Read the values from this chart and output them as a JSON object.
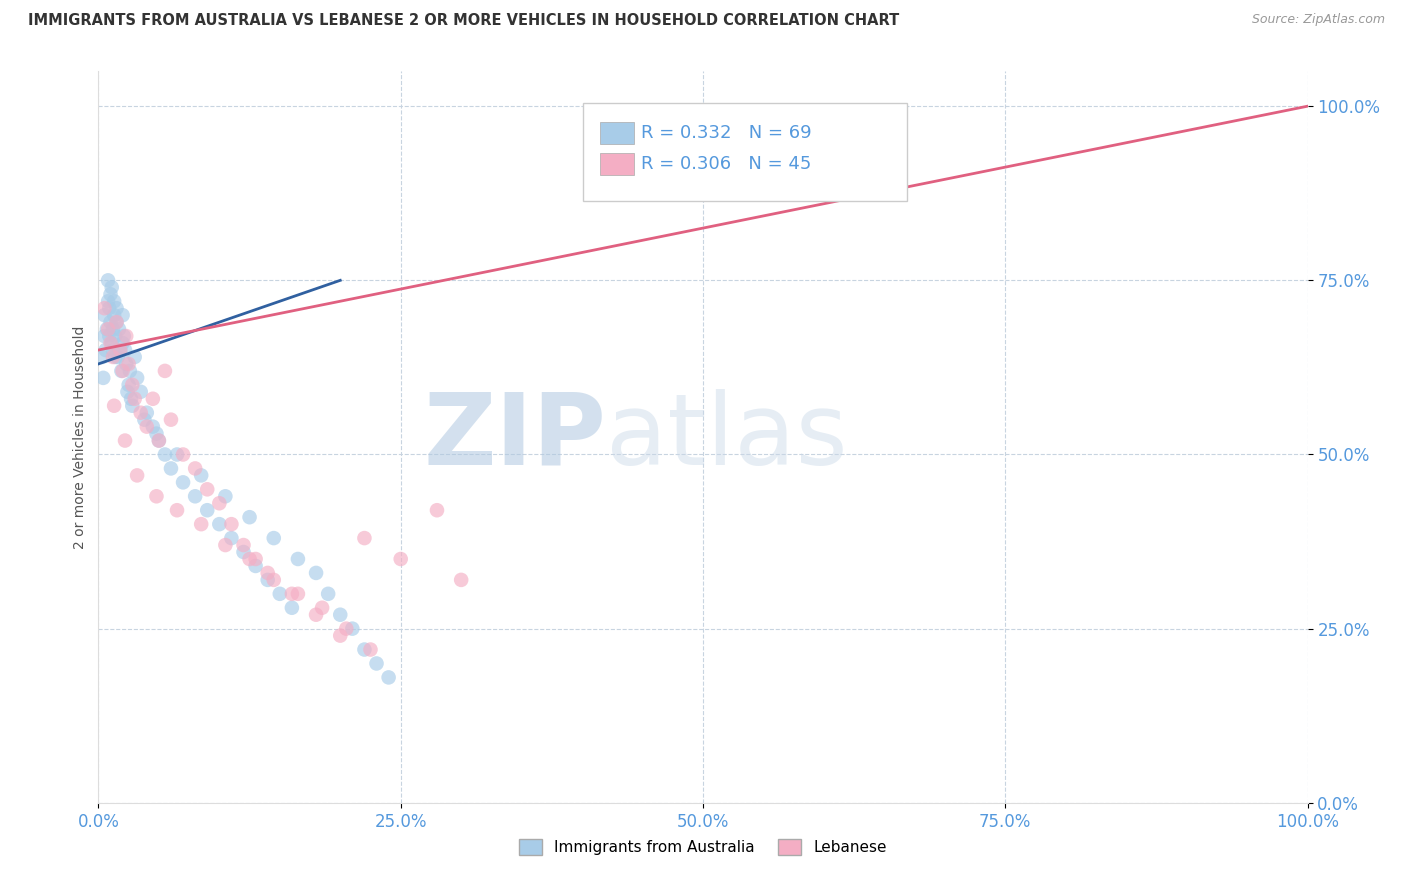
{
  "title": "IMMIGRANTS FROM AUSTRALIA VS LEBANESE 2 OR MORE VEHICLES IN HOUSEHOLD CORRELATION CHART",
  "source": "Source: ZipAtlas.com",
  "ylabel": "2 or more Vehicles in Household",
  "legend_label1": "Immigrants from Australia",
  "legend_label2": "Lebanese",
  "R1": 0.332,
  "N1": 69,
  "R2": 0.306,
  "N2": 45,
  "color1": "#a8cce8",
  "color2": "#f4aec4",
  "trend1_color": "#3060a0",
  "trend2_color": "#e06080",
  "watermark_zip": "ZIP",
  "watermark_atlas": "atlas",
  "background": "#ffffff",
  "ax_bg": "#ffffff",
  "title_color": "#333333",
  "axis_label_color": "#5599dd",
  "tick_color": "#5599dd",
  "figsize": [
    14.06,
    8.92
  ],
  "dpi": 100,
  "blue_x": [
    0.3,
    0.5,
    0.5,
    0.7,
    0.8,
    0.8,
    0.9,
    1.0,
    1.0,
    1.1,
    1.1,
    1.2,
    1.2,
    1.3,
    1.3,
    1.4,
    1.5,
    1.5,
    1.6,
    1.7,
    1.8,
    2.0,
    2.0,
    2.1,
    2.2,
    2.3,
    2.5,
    2.6,
    2.7,
    3.0,
    3.2,
    3.5,
    4.0,
    4.5,
    5.0,
    5.5,
    6.0,
    7.0,
    8.0,
    9.0,
    10.0,
    11.0,
    12.0,
    13.0,
    14.0,
    15.0,
    16.0,
    0.4,
    0.6,
    0.9,
    1.4,
    1.9,
    2.4,
    2.8,
    3.8,
    4.8,
    6.5,
    8.5,
    10.5,
    12.5,
    14.5,
    16.5,
    18.0,
    19.0,
    20.0,
    21.0,
    22.0,
    23.0,
    24.0
  ],
  "blue_y": [
    64,
    67,
    70,
    68,
    72,
    75,
    71,
    69,
    73,
    66,
    74,
    65,
    68,
    72,
    70,
    67,
    71,
    69,
    64,
    68,
    65,
    66,
    70,
    67,
    65,
    63,
    60,
    62,
    58,
    64,
    61,
    59,
    56,
    54,
    52,
    50,
    48,
    46,
    44,
    42,
    40,
    38,
    36,
    34,
    32,
    30,
    28,
    61,
    65,
    67,
    64,
    62,
    59,
    57,
    55,
    53,
    50,
    47,
    44,
    41,
    38,
    35,
    33,
    30,
    27,
    25,
    22,
    20,
    18
  ],
  "pink_x": [
    0.5,
    0.8,
    1.0,
    1.2,
    1.5,
    1.8,
    2.0,
    2.3,
    2.5,
    2.8,
    3.0,
    3.5,
    4.0,
    4.5,
    5.0,
    5.5,
    6.0,
    7.0,
    8.0,
    9.0,
    10.0,
    11.0,
    12.0,
    13.0,
    14.0,
    16.0,
    18.0,
    20.0,
    22.0,
    25.0,
    28.0,
    30.0,
    1.3,
    2.2,
    3.2,
    4.8,
    6.5,
    8.5,
    10.5,
    12.5,
    14.5,
    16.5,
    18.5,
    20.5,
    22.5
  ],
  "pink_y": [
    71,
    68,
    66,
    64,
    69,
    65,
    62,
    67,
    63,
    60,
    58,
    56,
    54,
    58,
    52,
    62,
    55,
    50,
    48,
    45,
    43,
    40,
    37,
    35,
    33,
    30,
    27,
    24,
    38,
    35,
    42,
    32,
    57,
    52,
    47,
    44,
    42,
    40,
    37,
    35,
    32,
    30,
    28,
    25,
    22
  ],
  "trend_blue_x0": 0.0,
  "trend_blue_x1": 20.0,
  "trend_blue_y0": 63.0,
  "trend_blue_y1": 75.0,
  "trend_pink_x0": 0.0,
  "trend_pink_x1": 100.0,
  "trend_pink_y0": 65.0,
  "trend_pink_y1": 100.0,
  "xlim": [
    0,
    100
  ],
  "ylim": [
    0,
    105
  ],
  "xticks": [
    0,
    25,
    50,
    75,
    100
  ],
  "yticks": [
    0,
    25,
    50,
    75,
    100
  ],
  "xticklabels": [
    "0.0%",
    "25.0%",
    "50.0%",
    "75.0%",
    "100.0%"
  ],
  "yticklabels": [
    "0.0%",
    "25.0%",
    "50.0%",
    "75.0%",
    "100.0%"
  ]
}
